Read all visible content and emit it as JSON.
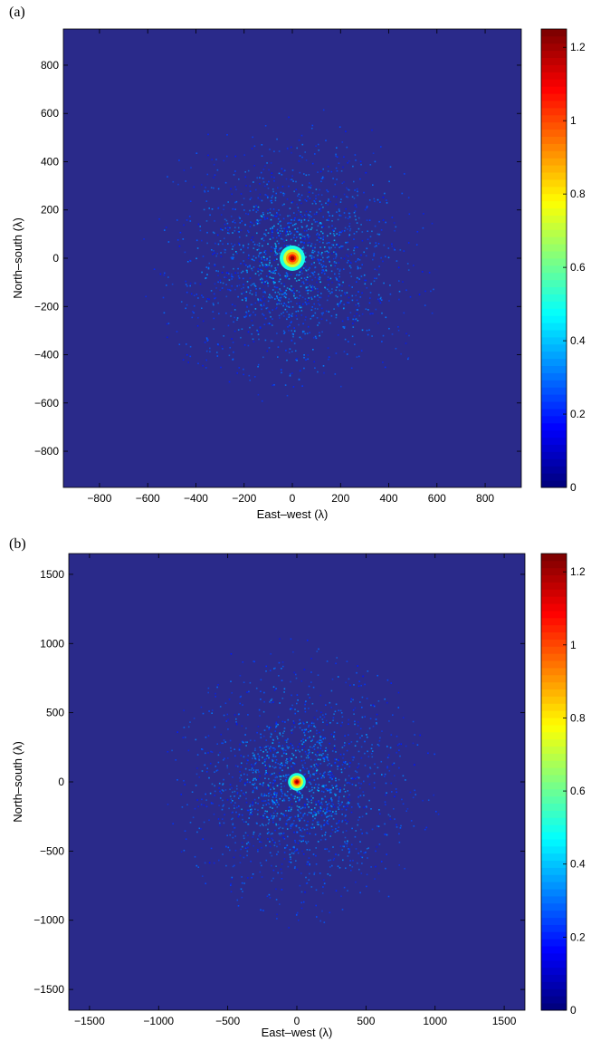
{
  "chart_data": [
    {
      "type": "heatmap",
      "panel_label": "(a)",
      "xlabel": "East–west (λ)",
      "ylabel": "North–south (λ)",
      "xlim": [
        -950,
        950
      ],
      "ylim": [
        -950,
        950
      ],
      "x_ticks": [
        -800,
        -600,
        -400,
        -200,
        0,
        200,
        400,
        600,
        800
      ],
      "y_ticks": [
        -800,
        -600,
        -400,
        -200,
        0,
        200,
        400,
        600,
        800
      ],
      "x_tick_labels": [
        "−800",
        "−600",
        "−400",
        "−200",
        "0",
        "200",
        "400",
        "600",
        "800"
      ],
      "y_tick_labels": [
        "−800",
        "−600",
        "−400",
        "−200",
        "0",
        "200",
        "400",
        "600",
        "800"
      ],
      "colorbar": {
        "range": [
          0,
          1.25
        ],
        "ticks": [
          0,
          0.2,
          0.4,
          0.6,
          0.8,
          1,
          1.2
        ],
        "tick_labels": [
          "0",
          "0.2",
          "0.4",
          "0.6",
          "0.8",
          "1",
          "1.2"
        ],
        "colormap": "jet"
      },
      "background_color": "#2a2a8a",
      "peak": {
        "x": 0,
        "y": 0,
        "value": 1.25
      },
      "scatter_extent": 650
    },
    {
      "type": "heatmap",
      "panel_label": "(b)",
      "xlabel": "East–west (λ)",
      "ylabel": "North–south (λ)",
      "xlim": [
        -1650,
        1650
      ],
      "ylim": [
        -1650,
        1650
      ],
      "x_ticks": [
        -1500,
        -1000,
        -500,
        0,
        500,
        1000,
        1500
      ],
      "y_ticks": [
        -1500,
        -1000,
        -500,
        0,
        500,
        1000,
        1500
      ],
      "x_tick_labels": [
        "−1500",
        "−1000",
        "−500",
        "0",
        "500",
        "1000",
        "1500"
      ],
      "y_tick_labels": [
        "−1500",
        "−1000",
        "−500",
        "0",
        "500",
        "1000",
        "1500"
      ],
      "colorbar": {
        "range": [
          0,
          1.25
        ],
        "ticks": [
          0,
          0.2,
          0.4,
          0.6,
          0.8,
          1,
          1.2
        ],
        "tick_labels": [
          "0",
          "0.2",
          "0.4",
          "0.6",
          "0.8",
          "1",
          "1.2"
        ],
        "colormap": "jet"
      },
      "background_color": "#2a2a8a",
      "peak": {
        "x": 0,
        "y": 0,
        "value": 1.25
      },
      "scatter_extent": 1100
    }
  ]
}
